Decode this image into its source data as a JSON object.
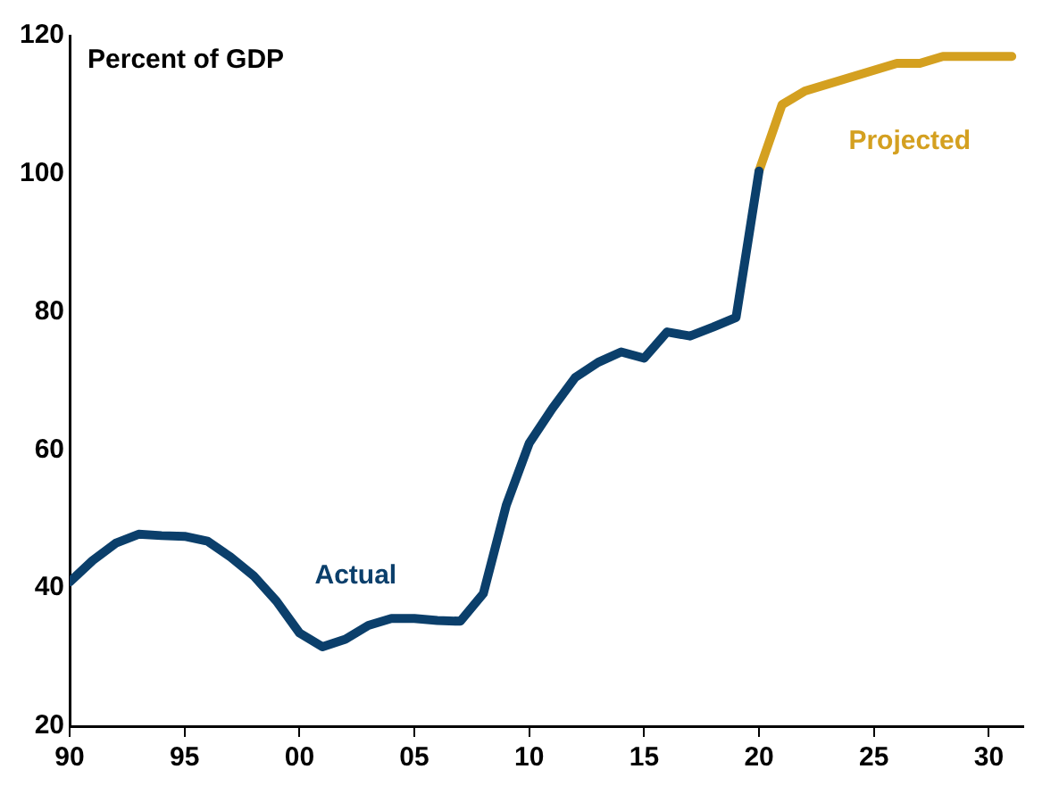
{
  "chart_data": {
    "type": "line",
    "ylabel": "Percent of GDP",
    "xlim": [
      1990,
      2031.5
    ],
    "ylim": [
      20,
      120
    ],
    "xticks": [
      {
        "value": 1990,
        "label": "90"
      },
      {
        "value": 1995,
        "label": "95"
      },
      {
        "value": 2000,
        "label": "00"
      },
      {
        "value": 2005,
        "label": "05"
      },
      {
        "value": 2010,
        "label": "10"
      },
      {
        "value": 2015,
        "label": "15"
      },
      {
        "value": 2020,
        "label": "20"
      },
      {
        "value": 2025,
        "label": "25"
      },
      {
        "value": 2030,
        "label": "30"
      }
    ],
    "yticks": [
      20,
      40,
      60,
      80,
      100,
      120
    ],
    "grid": false,
    "legend": false,
    "marker": "none",
    "line_style": "solid",
    "series": [
      {
        "name": "Actual",
        "color": "#0b3f6b",
        "x": [
          1990,
          1991,
          1992,
          1993,
          1994,
          1995,
          1996,
          1997,
          1998,
          1999,
          2000,
          2001,
          2002,
          2003,
          2004,
          2005,
          2006,
          2007,
          2008,
          2009,
          2010,
          2011,
          2012,
          2013,
          2014,
          2015,
          2016,
          2017,
          2018,
          2019,
          2020
        ],
        "values": [
          40.9,
          44,
          46.5,
          47.8,
          47.6,
          47.5,
          46.8,
          44.5,
          41.8,
          38.1,
          33.5,
          31.5,
          32.6,
          34.6,
          35.6,
          35.6,
          35.3,
          35.2,
          39.2,
          52,
          61,
          66,
          70.5,
          72.7,
          74.2,
          73.3,
          77.1,
          76.5,
          77.8,
          79.2,
          100.4
        ]
      },
      {
        "name": "Projected",
        "color": "#d4a020",
        "x": [
          2020,
          2021,
          2022,
          2023,
          2024,
          2025,
          2026,
          2027,
          2028,
          2029,
          2030,
          2031
        ],
        "values": [
          100.4,
          110,
          112,
          113,
          114,
          115,
          116,
          116,
          117,
          117,
          117,
          117
        ]
      }
    ]
  }
}
